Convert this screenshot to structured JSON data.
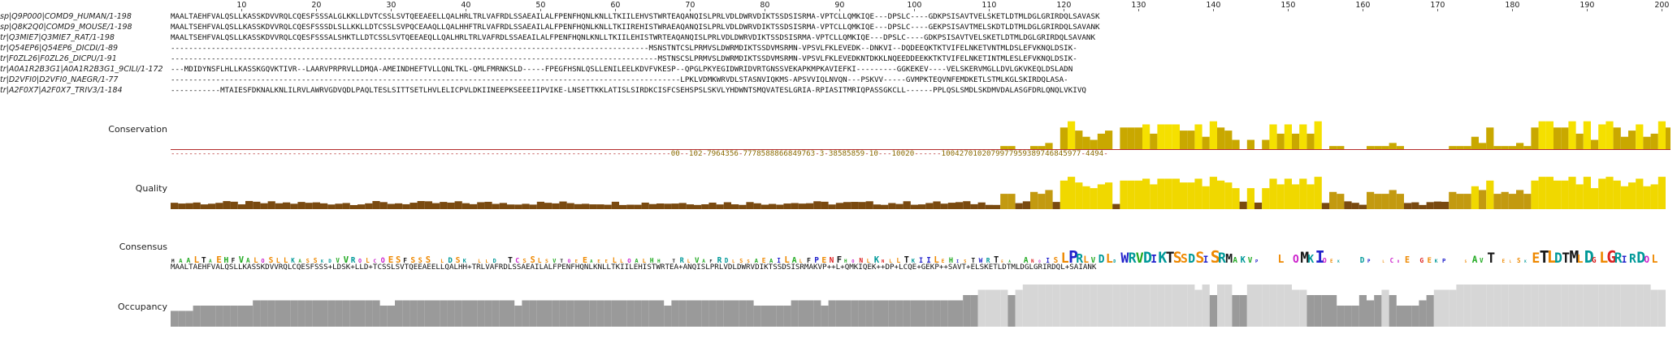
{
  "ruler": {
    "labels": [
      "10",
      "20",
      "30",
      "40",
      "50",
      "60",
      "70",
      "80",
      "90",
      "100",
      "110",
      "120",
      "130",
      "140",
      "150",
      "160",
      "170",
      "180",
      "190",
      "200"
    ]
  },
  "sequences": [
    {
      "name": "sp|Q9P000|COMD9_HUMAN/1-198",
      "residues": "MAALTAEHFVALQSLLKASSKDVVRQLCQESFSSSALGLKKLLDVTCSSLSVTQEEAEELLQALHRLTRLVAFRDLSSAEAILALFPENFHQNLKNLLTKIILEHVSTWRTEAQANQISLPRLVDLDWRVDIKTSSDSISRMA-VPTCLLQMKIQE---DPSLC----GDKPSISAVTVELSKETLDTMLDGLGRIRDQLSAVASK"
    },
    {
      "name": "sp|Q8K2Q0|COMD9_MOUSE/1-198",
      "residues": "MAALTSEHFVALQSLLKASSKDVVRQLCQESFSSSDLSLLKKLLDTCSSLSVPQCEAAQLLQALHHFTRLVAFRDLSSAEAILALFPENFHQNLKNLLTKIIREHISTWRAEAQANQISLPRLVDLDWRVDIKTSSDSISRMA-VPTCLLQMKIQE---DPSLC----GEKPSISAVTMELSKDTLDTMLDGLGRIRDQLSAVANK"
    },
    {
      "name": "tr|Q3MIE7|Q3MIE7_RAT/1-198",
      "residues": "MAALTSEHFVALQSLLKASSKDVVRQLCQESFSSSALSHKTLLDTCSSLSVTQEEAEQLLQALHRLTRLVAFRDLSSAEAILALFPENFHQNLKNLLTKIILEHISTWRTEAQANQISLPRLVDLDWRVDIKTSSDSISRMA-VPTCLLQMKIQE---DPSLC----GDKPSISAVTVELSKETLDTMLDGLGRIRDQLSAVANK"
    },
    {
      "name": "tr|Q54EP6|Q54EP6_DICDI/1-89",
      "residues": "----------------------------------------------------------------------------------------------------------MSNSTNTCSLPRMVSLDWRMDIKTSSDVMSRMN-VPSVLFKLEVEDK--DNKVI--DQDEEQKTKTVIFELNKETVNTMLDSLEFVKNQLDSIK-"
    },
    {
      "name": "tr|F0ZL26|F0ZL26_DICPU/1-91",
      "residues": "------------------------------------------------------------------------------------------------------------MSTNSCSLPRMVSLDWRMDIKTSSDVMSRMN-VPSVLFKLEVEDKNTDKKLNQEEDDEEKKTKTVIFELNKETINTMLESLEFVKNQLDSIK-"
    },
    {
      "name": "tr|A0A1R2B3G1|A0A1R2B3G1_9CILI/1-172",
      "residues": "---MDIDYNSFLHLLKASSKGQVKTIVR--LAARVPRPRVLLDMQA-AMEINDHEFTVLLQNLTKL-QMLFMRNKSLD-----FPEGFHSNLQSLLENILEELKDVFVKESP--QPGLPKYEGIDWRIDVRTGNSSVEKAPKMPKAVIEFKI---------GGKEKEV----VELSKERVMGLLDVLGKVKEQLDSLADN"
    },
    {
      "name": "tr|D2VFI0|D2VFI0_NAEGR/1-77",
      "residues": "-----------------------------------------------------------------------------------------------------------------LPKLVDMKWRVDLSTASNVIQKMS-APSVVIQLNVQN---PSKVV-----GVMPKTEQVNFEMDKETLSTMLKGLSKIRDQLASA-"
    },
    {
      "name": "tr|A2F0X7|A2F0X7_TRIV3/1-184",
      "residues": "-----------MTAIESFDKNALKNLILRVLAWRVGDVQDLPAQLTESLSITTSETLHVLELICPVLDKIINEEPKSEEEIIPVIKE-LNSETTKKLATISLSIRDKCISFCSEHSPSLSKVLYHDWNTSMQVATESLGRIA-RPIASITMRIQPASSGKCLL------PPLQSLSMDLSKDMVDALASGFDRLQNQLVKIVQ"
    }
  ],
  "tracks": {
    "conservation": {
      "label": "Conservation",
      "digits": "---------------------------------------------------------------------------------------------------------------00--102-7964356-7778588866849763-3-38585859-10---10020------1004270102079977959389746845977-4494-"
    },
    "quality": {
      "label": "Quality"
    },
    "consensus": {
      "label": "Consensus",
      "residues": "MAALTAEHFVALQSLLKASSKDVVRQLCQESFSSS+LDSK+LLD+TCSSLSVTQEEAEELLQALHH+TRLVAFRDLSSAEAILALFPENFHQNLKNLLTKIILEHISTWRTEA+ANQISLPRLVDLDWRVDIKTSSDSISRMAKVP++L+QMKIQEK++DP+LCQE+GEKP++SAVT+ELSKETLDTMLDGLGRIRDQL+SAIANK"
    },
    "occupancy": {
      "label": "Occupancy"
    }
  },
  "colors": {
    "conservation_high": "#f5e000",
    "conservation_mid": "#c9a800",
    "quality_low": "#7a4a10",
    "quality_high": "#f0d800",
    "occupancy": "#9a9a9a",
    "occupancy_light": "#d6d6d6",
    "divider": "#b32b2b"
  }
}
